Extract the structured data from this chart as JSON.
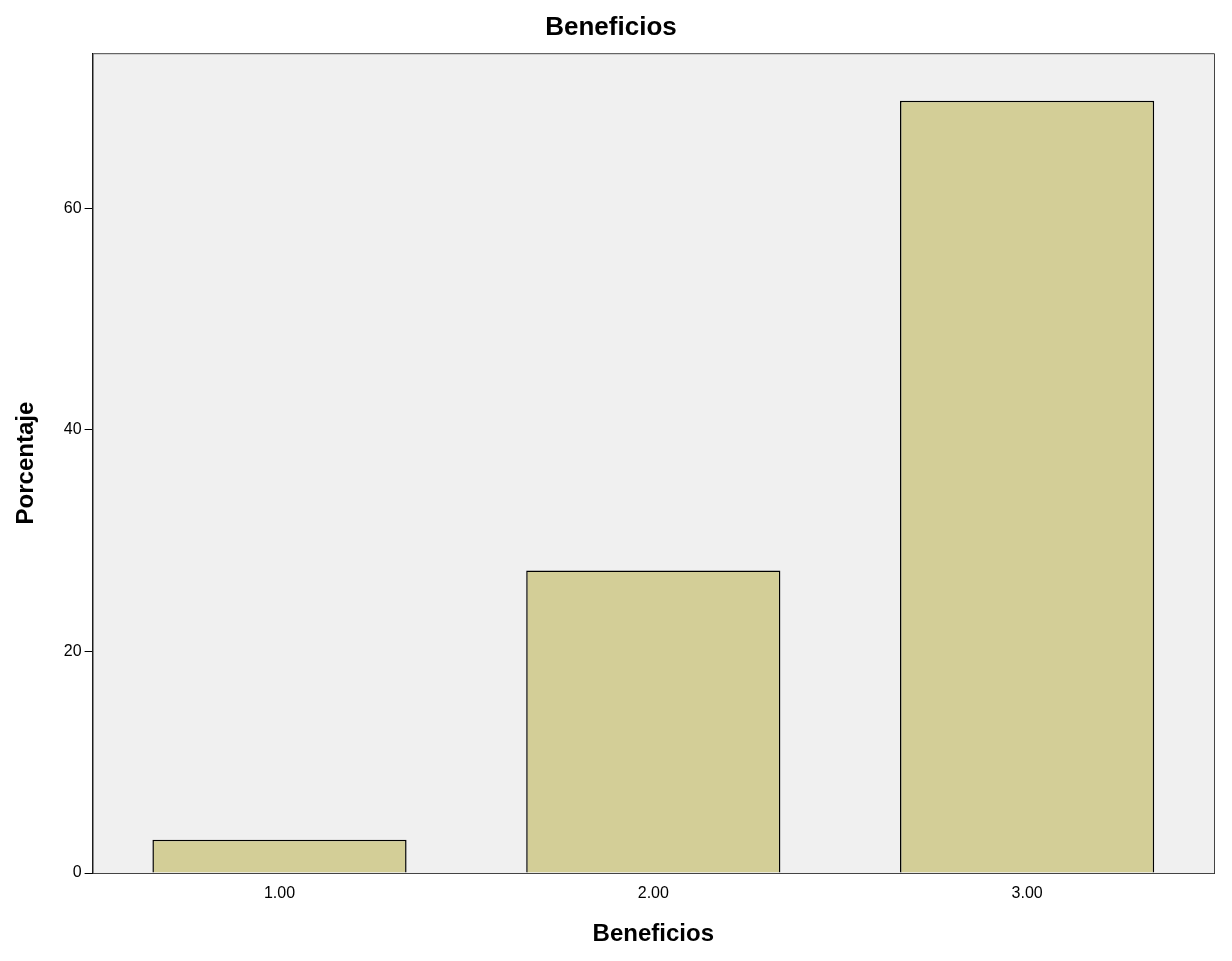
{
  "chart_data": {
    "type": "bar",
    "title": "Beneficios",
    "xlabel": "Beneficios",
    "ylabel": "Porcentaje",
    "categories": [
      "1.00",
      "2.00",
      "3.00"
    ],
    "values": [
      3.0,
      27.3,
      69.7
    ],
    "color": "#d3ce97",
    "ylim": [
      0,
      74
    ],
    "yticks": [
      0,
      20,
      40,
      60
    ],
    "grid": false,
    "legend": false
  }
}
